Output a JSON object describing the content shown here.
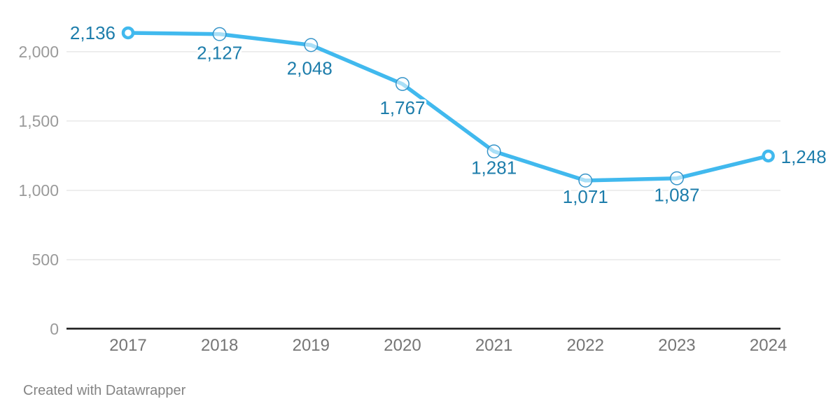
{
  "chart_data": {
    "type": "line",
    "title": "",
    "x": [
      "2017",
      "2018",
      "2019",
      "2020",
      "2021",
      "2022",
      "2023",
      "2024"
    ],
    "series": [
      {
        "name": "values",
        "values": [
          2136,
          2127,
          2048,
          1767,
          1281,
          1071,
          1087,
          1248
        ]
      }
    ],
    "point_labels": [
      "2,136",
      "2,127",
      "2,048",
      "1,767",
      "1,281",
      "1,071",
      "1,087",
      "1,248"
    ],
    "y_ticks": [
      {
        "value": 0,
        "label": "0"
      },
      {
        "value": 500,
        "label": "500"
      },
      {
        "value": 1000,
        "label": "1,000"
      },
      {
        "value": 1500,
        "label": "1,500"
      },
      {
        "value": 2000,
        "label": "2,000"
      }
    ],
    "ylim": [
      0,
      2373
    ],
    "grid": "horizontal-only",
    "legend": "none",
    "colors": {
      "line": "#41b9ee",
      "point_label": "#1d7dab",
      "midpoint_ring": "#3694c9",
      "grid": "#dedede",
      "axis": "#161616",
      "y_tick_label": "#9a9a9a",
      "x_tick_label": "#757575"
    }
  },
  "footer": {
    "credit": "Created with Datawrapper"
  }
}
